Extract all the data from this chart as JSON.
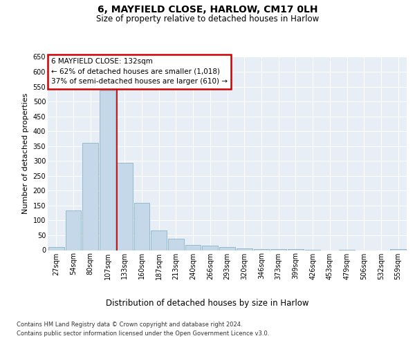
{
  "title1": "6, MAYFIELD CLOSE, HARLOW, CM17 0LH",
  "title2": "Size of property relative to detached houses in Harlow",
  "xlabel": "Distribution of detached houses by size in Harlow",
  "ylabel": "Number of detached properties",
  "footnote1": "Contains HM Land Registry data © Crown copyright and database right 2024.",
  "footnote2": "Contains public sector information licensed under the Open Government Licence v3.0.",
  "bar_labels": [
    "27sqm",
    "54sqm",
    "80sqm",
    "107sqm",
    "133sqm",
    "160sqm",
    "187sqm",
    "213sqm",
    "240sqm",
    "266sqm",
    "293sqm",
    "320sqm",
    "346sqm",
    "373sqm",
    "399sqm",
    "426sqm",
    "453sqm",
    "479sqm",
    "506sqm",
    "532sqm",
    "559sqm"
  ],
  "bar_values": [
    10,
    133,
    362,
    537,
    293,
    158,
    66,
    38,
    17,
    14,
    10,
    5,
    4,
    3,
    3,
    2,
    0,
    2,
    0,
    0,
    3
  ],
  "bar_color": "#c5d8ea",
  "bar_edge_color": "#7aaabf",
  "highlight_index": 4,
  "highlight_line_color": "#cc0000",
  "annotation_line1": "6 MAYFIELD CLOSE: 132sqm",
  "annotation_line2": "← 62% of detached houses are smaller (1,018)",
  "annotation_line3": "37% of semi-detached houses are larger (610) →",
  "annotation_box_facecolor": "#ffffff",
  "annotation_box_edgecolor": "#cc0000",
  "ylim": [
    0,
    650
  ],
  "yticks": [
    0,
    50,
    100,
    150,
    200,
    250,
    300,
    350,
    400,
    450,
    500,
    550,
    600,
    650
  ],
  "fig_bg": "#ffffff",
  "axes_bg": "#e8eef5",
  "grid_color": "#ffffff",
  "title1_fontsize": 10,
  "title2_fontsize": 8.5,
  "tick_fontsize": 7,
  "ylabel_fontsize": 8,
  "xlabel_fontsize": 8.5,
  "footnote_fontsize": 6,
  "annotation_fontsize": 7.5
}
